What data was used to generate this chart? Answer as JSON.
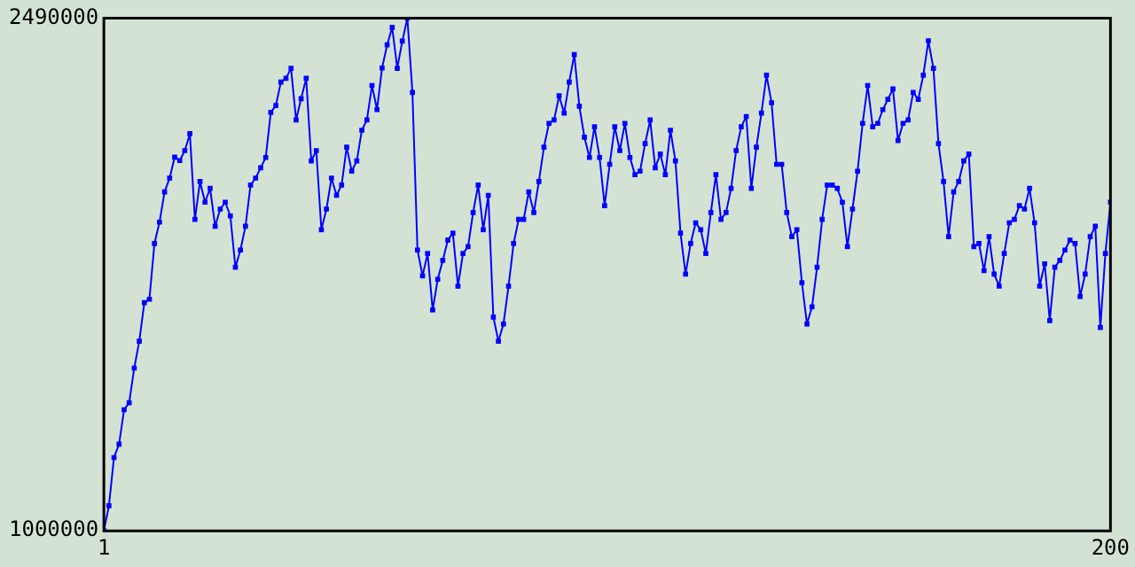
{
  "chart_data": {
    "type": "line",
    "marker": "square",
    "line_style": "solid",
    "legend": false,
    "xlim": [
      1,
      200
    ],
    "xticks": [
      1,
      200
    ],
    "ylim": [
      1000000,
      2490000
    ],
    "yticks": [
      1000000,
      2490000
    ],
    "x": [
      1,
      2,
      3,
      4,
      5,
      6,
      7,
      8,
      9,
      10,
      11,
      12,
      13,
      14,
      15,
      16,
      17,
      18,
      19,
      20,
      21,
      22,
      23,
      24,
      25,
      26,
      27,
      28,
      29,
      30,
      31,
      32,
      33,
      34,
      35,
      36,
      37,
      38,
      39,
      40,
      41,
      42,
      43,
      44,
      45,
      46,
      47,
      48,
      49,
      50,
      51,
      52,
      53,
      54,
      55,
      56,
      57,
      58,
      59,
      60,
      61,
      62,
      63,
      64,
      65,
      66,
      67,
      68,
      69,
      70,
      71,
      72,
      73,
      74,
      75,
      76,
      77,
      78,
      79,
      80,
      81,
      82,
      83,
      84,
      85,
      86,
      87,
      88,
      89,
      90,
      91,
      92,
      93,
      94,
      95,
      96,
      97,
      98,
      99,
      100,
      101,
      102,
      103,
      104,
      105,
      106,
      107,
      108,
      109,
      110,
      111,
      112,
      113,
      114,
      115,
      116,
      117,
      118,
      119,
      120,
      121,
      122,
      123,
      124,
      125,
      126,
      127,
      128,
      129,
      130,
      131,
      132,
      133,
      134,
      135,
      136,
      137,
      138,
      139,
      140,
      141,
      142,
      143,
      144,
      145,
      146,
      147,
      148,
      149,
      150,
      151,
      152,
      153,
      154,
      155,
      156,
      157,
      158,
      159,
      160,
      161,
      162,
      163,
      164,
      165,
      166,
      167,
      168,
      169,
      170,
      171,
      172,
      173,
      174,
      175,
      176,
      177,
      178,
      179,
      180,
      181,
      182,
      183,
      184,
      185,
      186,
      187,
      188,
      189,
      190,
      191,
      192,
      193,
      194,
      195,
      196,
      197,
      198,
      199,
      200
    ],
    "series": [
      {
        "color": "#0000ff",
        "values": [
          1000000,
          1073000,
          1213000,
          1252000,
          1352000,
          1372000,
          1473000,
          1551000,
          1663000,
          1673000,
          1835000,
          1897000,
          1985000,
          2025000,
          2086000,
          2076000,
          2105000,
          2154000,
          1905000,
          2015000,
          1955000,
          1995000,
          1885000,
          1935000,
          1955000,
          1915000,
          1766000,
          1816000,
          1885000,
          2005000,
          2025000,
          2055000,
          2085000,
          2216000,
          2236000,
          2304000,
          2315000,
          2344000,
          2194000,
          2256000,
          2315000,
          2075000,
          2105000,
          1875000,
          1935000,
          2025000,
          1975000,
          2005000,
          2115000,
          2045000,
          2075000,
          2164000,
          2194000,
          2294000,
          2224000,
          2345000,
          2412000,
          2463000,
          2344000,
          2423000,
          2490000,
          2274000,
          1816000,
          1741000,
          1806000,
          1642000,
          1731000,
          1786000,
          1845000,
          1865000,
          1711000,
          1806000,
          1826000,
          1925000,
          2005000,
          1875000,
          1975000,
          1621000,
          1551000,
          1601000,
          1711000,
          1835000,
          1905000,
          1905000,
          1985000,
          1925000,
          2015000,
          2115000,
          2184000,
          2194000,
          2264000,
          2214000,
          2304000,
          2384000,
          2234000,
          2144000,
          2085000,
          2174000,
          2085000,
          1945000,
          2065000,
          2174000,
          2105000,
          2184000,
          2085000,
          2035000,
          2045000,
          2125000,
          2194000,
          2055000,
          2095000,
          2035000,
          2164000,
          2075000,
          1865000,
          1746000,
          1835000,
          1895000,
          1875000,
          1806000,
          1925000,
          2035000,
          1905000,
          1925000,
          1995000,
          2105000,
          2174000,
          2204000,
          1995000,
          2115000,
          2214000,
          2324000,
          2244000,
          2065000,
          2065000,
          1925000,
          1855000,
          1875000,
          1721000,
          1601000,
          1651000,
          1766000,
          1905000,
          2005000,
          2005000,
          1995000,
          1955000,
          1826000,
          1935000,
          2045000,
          2184000,
          2294000,
          2174000,
          2184000,
          2224000,
          2254000,
          2284000,
          2134000,
          2184000,
          2194000,
          2274000,
          2254000,
          2324000,
          2424000,
          2344000,
          2125000,
          2015000,
          1855000,
          1985000,
          2015000,
          2075000,
          2095000,
          1826000,
          1835000,
          1756000,
          1855000,
          1746000,
          1711000,
          1806000,
          1895000,
          1905000,
          1945000,
          1935000,
          1995000,
          1895000,
          1711000,
          1776000,
          1611000,
          1766000,
          1786000,
          1816000,
          1845000,
          1835000,
          1681000,
          1746000,
          1855000,
          1885000,
          1591000,
          1806000,
          1955000
        ]
      }
    ]
  }
}
